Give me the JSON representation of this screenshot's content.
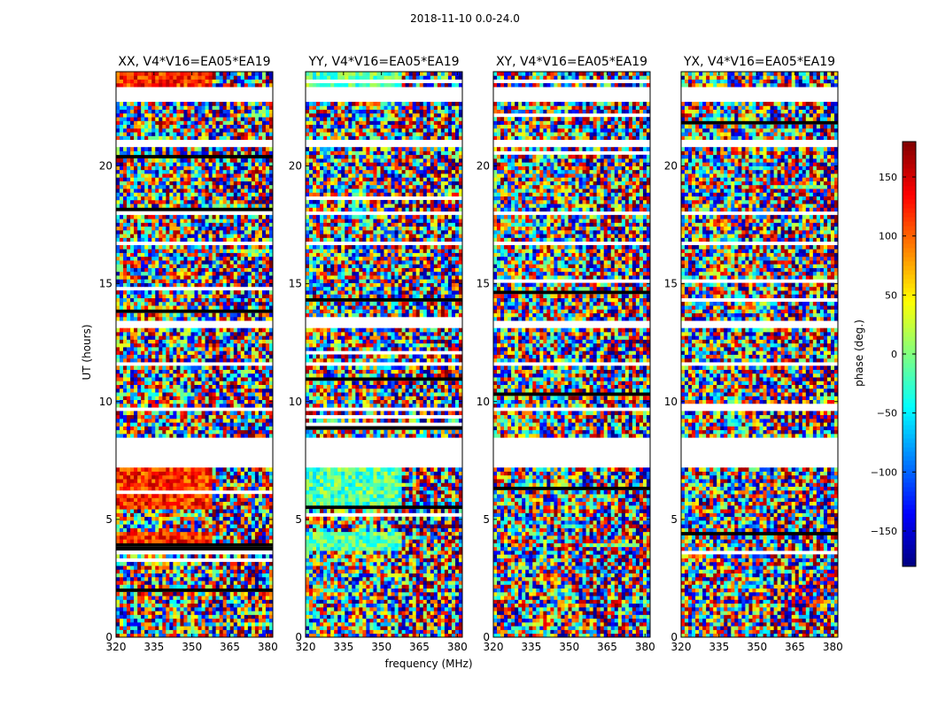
{
  "figure": {
    "suptitle": "2018-11-10 0.0-24.0",
    "xlabel": "frequency (MHz)",
    "ylabel": "UT (hours)",
    "colorbar_label": "phase (deg.)"
  },
  "chart_data": {
    "type": "heatmap",
    "title": "2018-11-10 0.0-24.0",
    "xlabel": "frequency (MHz)",
    "ylabel": "UT (hours)",
    "xlim": [
      320,
      382
    ],
    "ylim": [
      0,
      24
    ],
    "x_ticks": [
      320,
      335,
      350,
      365,
      380
    ],
    "y_ticks": [
      0,
      5,
      10,
      15,
      20
    ],
    "colorbar": {
      "label": "phase (deg.)",
      "range": [
        -180,
        180
      ],
      "ticks": [
        -150,
        -100,
        -50,
        0,
        50,
        100,
        150
      ],
      "colormap": "jet"
    },
    "panels": [
      {
        "title": "XX, V4*V16=EA05*EA19",
        "character": "phase mostly near +120 deg in low-frequency half during 5.5-7.2 UT, noisy elsewhere",
        "base_phase": 120
      },
      {
        "title": "YY, V4*V16=EA05*EA19",
        "character": "phase mostly near -30 to 0 deg in low-frequency half during 5.5-7.2 UT, noisy elsewhere",
        "base_phase": -15
      },
      {
        "title": "XY, V4*V16=EA05*EA19",
        "character": "noisy phase wrapping across all frequencies",
        "base_phase": null
      },
      {
        "title": "YX, V4*V16=EA05*EA19",
        "character": "noisy phase wrapping across all frequencies",
        "base_phase": null
      }
    ],
    "flagged_gaps_ut": [
      [
        7.25,
        8.45
      ],
      [
        9.65,
        9.8
      ],
      [
        11.6,
        11.75
      ],
      [
        13.2,
        13.45
      ],
      [
        16.7,
        16.85
      ],
      [
        17.95,
        18.1
      ],
      [
        19.45,
        19.6
      ],
      [
        20.85,
        21.05
      ],
      [
        22.65,
        23.35
      ]
    ]
  },
  "colors": {
    "axis": "#000000",
    "background": "#ffffff",
    "flagged": "#ffffff"
  }
}
